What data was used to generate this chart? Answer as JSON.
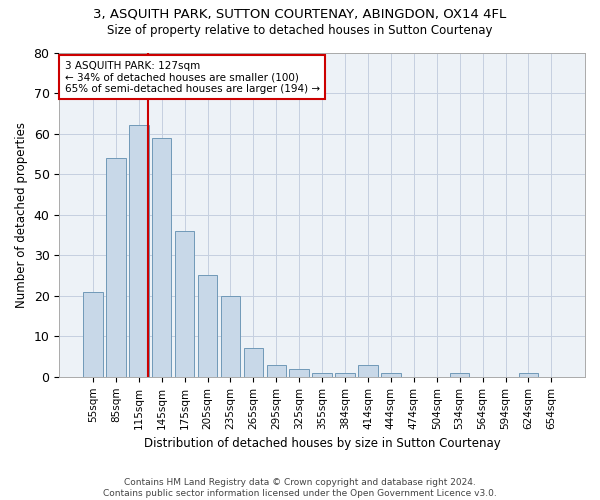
{
  "title1": "3, ASQUITH PARK, SUTTON COURTENAY, ABINGDON, OX14 4FL",
  "title2": "Size of property relative to detached houses in Sutton Courtenay",
  "xlabel": "Distribution of detached houses by size in Sutton Courtenay",
  "ylabel": "Number of detached properties",
  "categories": [
    "55sqm",
    "85sqm",
    "115sqm",
    "145sqm",
    "175sqm",
    "205sqm",
    "235sqm",
    "265sqm",
    "295sqm",
    "325sqm",
    "355sqm",
    "384sqm",
    "414sqm",
    "444sqm",
    "474sqm",
    "504sqm",
    "534sqm",
    "564sqm",
    "594sqm",
    "624sqm",
    "654sqm"
  ],
  "values": [
    21,
    54,
    62,
    59,
    36,
    25,
    20,
    7,
    3,
    2,
    1,
    1,
    3,
    1,
    0,
    0,
    1,
    0,
    0,
    1,
    0
  ],
  "bar_color": "#c8d8e8",
  "bar_edge_color": "#7099b8",
  "vline_color": "#cc0000",
  "annotation_text": "3 ASQUITH PARK: 127sqm\n← 34% of detached houses are smaller (100)\n65% of semi-detached houses are larger (194) →",
  "annotation_box_color": "#ffffff",
  "annotation_box_edge": "#cc0000",
  "ylim": [
    0,
    80
  ],
  "yticks": [
    0,
    10,
    20,
    30,
    40,
    50,
    60,
    70,
    80
  ],
  "footer1": "Contains HM Land Registry data © Crown copyright and database right 2024.",
  "footer2": "Contains public sector information licensed under the Open Government Licence v3.0.",
  "bg_color": "#edf2f7",
  "grid_color": "#c5cfe0"
}
